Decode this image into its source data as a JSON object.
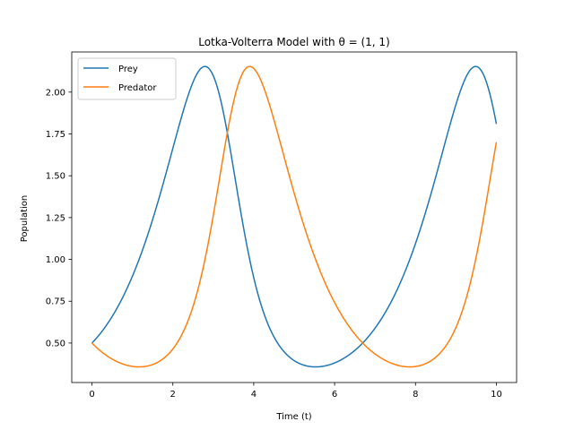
{
  "chart_data": {
    "type": "line",
    "title": "Lotka-Volterra Model with θ = (1, 1)",
    "xlabel": "Time (t)",
    "ylabel": "Population",
    "xlim": [
      -0.5,
      10.5
    ],
    "ylim": [
      0.264,
      2.24
    ],
    "xticks": [
      0,
      2,
      4,
      6,
      8,
      10
    ],
    "yticks": [
      0.5,
      0.75,
      1.0,
      1.25,
      1.5,
      1.75,
      2.0
    ],
    "ytick_labels": [
      "0.50",
      "0.75",
      "1.00",
      "1.25",
      "1.50",
      "1.75",
      "2.00"
    ],
    "grid": false,
    "legend_position": "upper left",
    "model": {
      "alpha": 1,
      "beta": 1,
      "gamma": 1,
      "delta": 1,
      "x0": 0.5,
      "y0": 0.5,
      "t_end": 10
    },
    "series": [
      {
        "name": "Prey",
        "color": "#1f77b4",
        "points": [
          [
            0,
            0.5
          ],
          [
            1,
            0.92
          ],
          [
            2,
            1.62
          ],
          [
            2.8,
            2.15
          ],
          [
            3.5,
            1.55
          ],
          [
            4,
            0.95
          ],
          [
            5,
            0.42
          ],
          [
            5.55,
            0.36
          ],
          [
            6,
            0.38
          ],
          [
            7,
            0.58
          ],
          [
            8,
            1.1
          ],
          [
            9,
            1.85
          ],
          [
            9.5,
            2.15
          ],
          [
            10,
            1.81
          ]
        ]
      },
      {
        "name": "Predator",
        "color": "#ff7f0e",
        "points": [
          [
            0,
            0.5
          ],
          [
            1,
            0.36
          ],
          [
            1.2,
            0.36
          ],
          [
            2,
            0.47
          ],
          [
            3,
            1.2
          ],
          [
            3.5,
            1.9
          ],
          [
            3.9,
            2.15
          ],
          [
            4.5,
            1.85
          ],
          [
            5,
            1.32
          ],
          [
            6,
            0.7
          ],
          [
            7,
            0.42
          ],
          [
            7.8,
            0.36
          ],
          [
            8.5,
            0.4
          ],
          [
            9,
            0.55
          ],
          [
            9.5,
            0.95
          ],
          [
            10,
            1.7
          ]
        ]
      }
    ]
  }
}
